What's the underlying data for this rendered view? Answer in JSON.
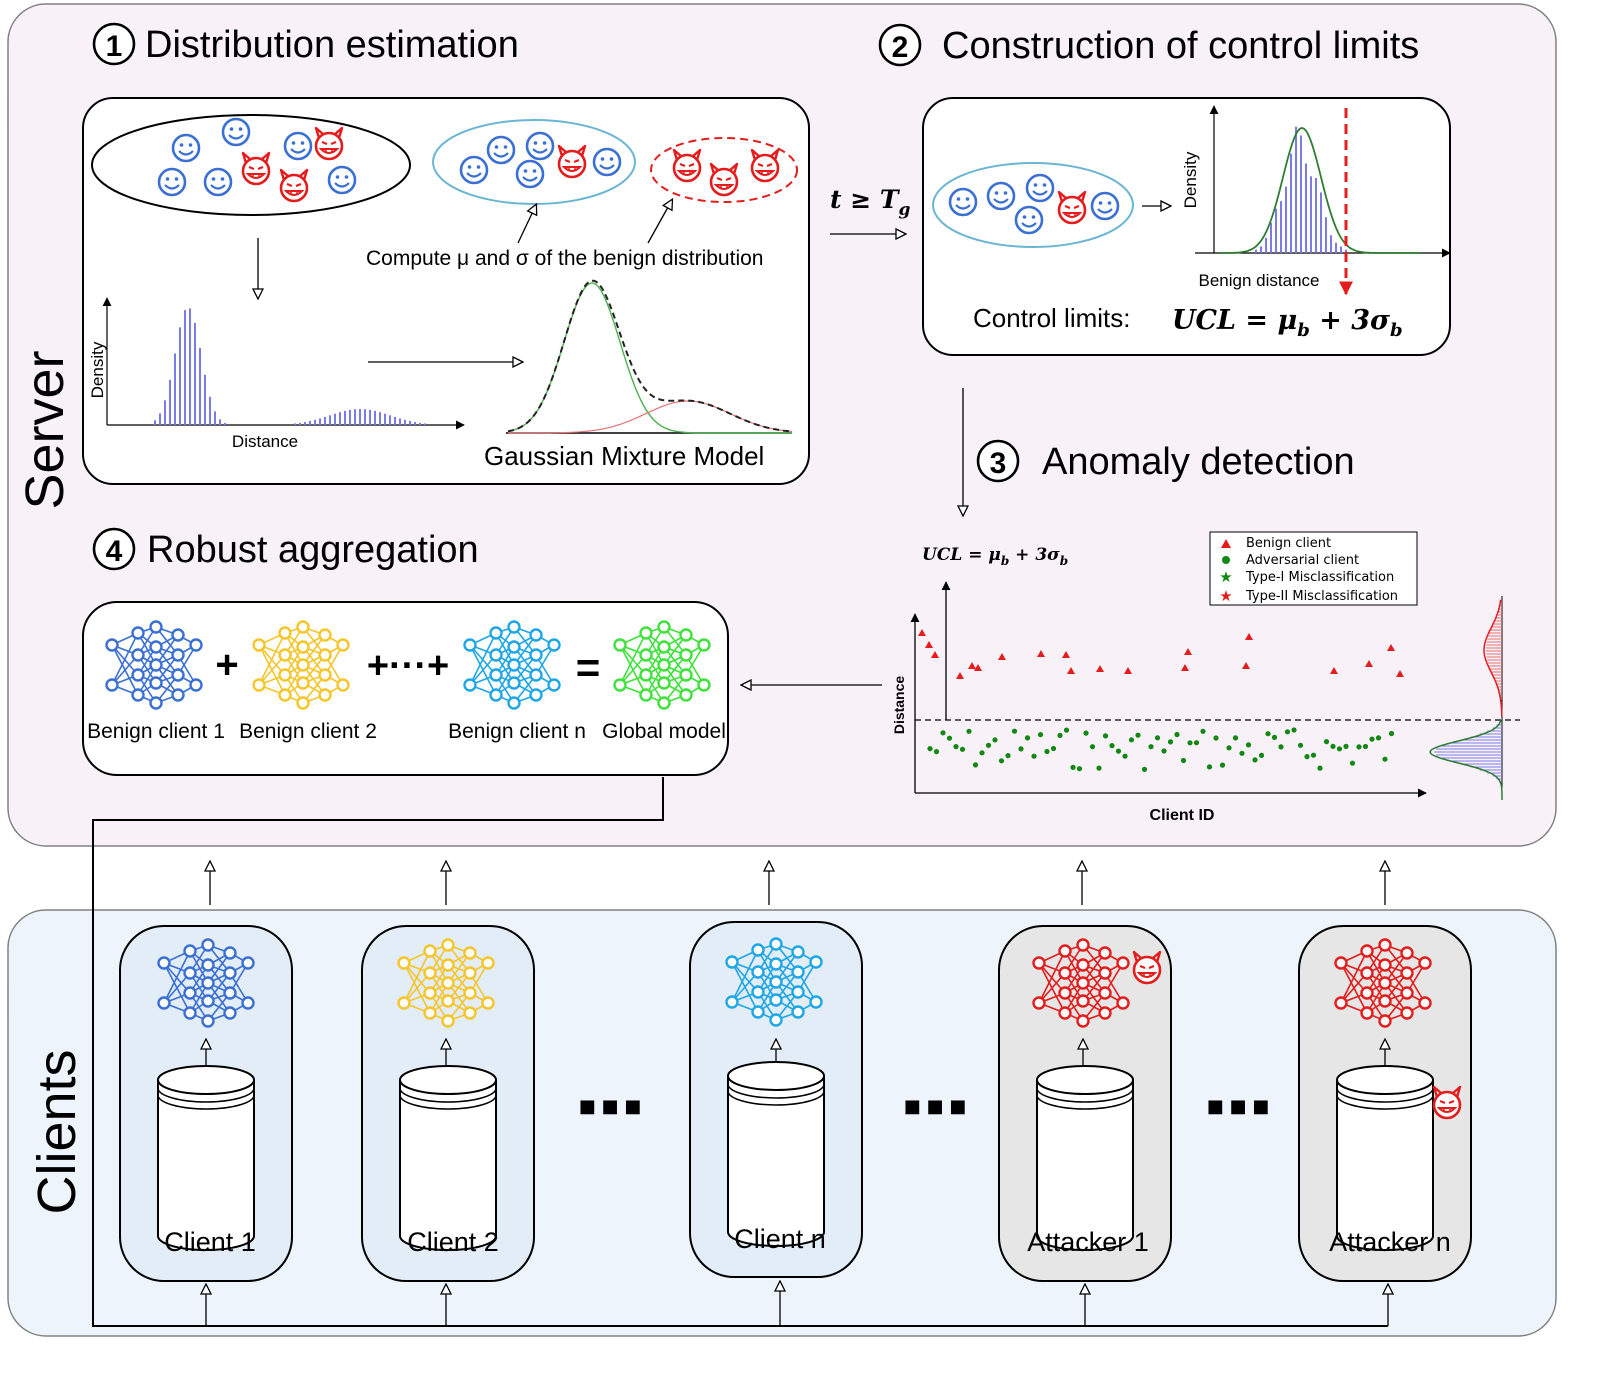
{
  "colors": {
    "server_bg": "#f8f1f8",
    "clients_bg": "#eef4fb",
    "benign_blue": "#3a6fd4",
    "client2_yellow": "#f5c52a",
    "clientn_cyan": "#1fa6e6",
    "global_green": "#3ee23a",
    "attacker_red": "#e51c1c",
    "hist_purple": "#7b7be8"
  },
  "server": {
    "label": "Server",
    "step1": {
      "num": "1",
      "title": "Distribution estimation",
      "compute_label": "Compute μ and σ of the benign distribution",
      "hist_ylabel": "Density",
      "hist_xlabel": "Distance",
      "gmm_label": "Gaussian Mixture Model"
    },
    "arrow_condition": "t ≥ T",
    "arrow_condition_sub": "g",
    "step2": {
      "num": "2",
      "title": "Construction of control limits",
      "ylabel": "Density",
      "xlabel": "Benign distance",
      "control_label": "Control limits:",
      "ucl_formula": "UCL = μ",
      "ucl_sub1": "b",
      "ucl_rest": " + 3σ",
      "ucl_sub2": "b"
    },
    "step3": {
      "num": "3",
      "title": "Anomaly detection",
      "ucl_formula": "UCL = μ",
      "ucl_sub1": "b",
      "ucl_rest": " + 3σ",
      "ucl_sub2": "b",
      "legend": [
        "Benign client",
        "Adversarial client",
        "Type-I Misclassification",
        "Type-II Misclassification"
      ],
      "ylabel": "Distance",
      "xlabel": "Client ID"
    },
    "step4": {
      "num": "4",
      "title": "Robust aggregation",
      "labels": [
        "Benign client 1",
        "Benign client 2",
        "Benign client n",
        "Global model"
      ],
      "plus": "+",
      "plus_dots": "+···+",
      "equals": "="
    }
  },
  "clients": {
    "label": "Clients",
    "items": [
      "Client 1",
      "Client 2",
      "Client n",
      "Attacker 1",
      "Attacker n"
    ],
    "ellipsis": "■ ■ ■"
  }
}
